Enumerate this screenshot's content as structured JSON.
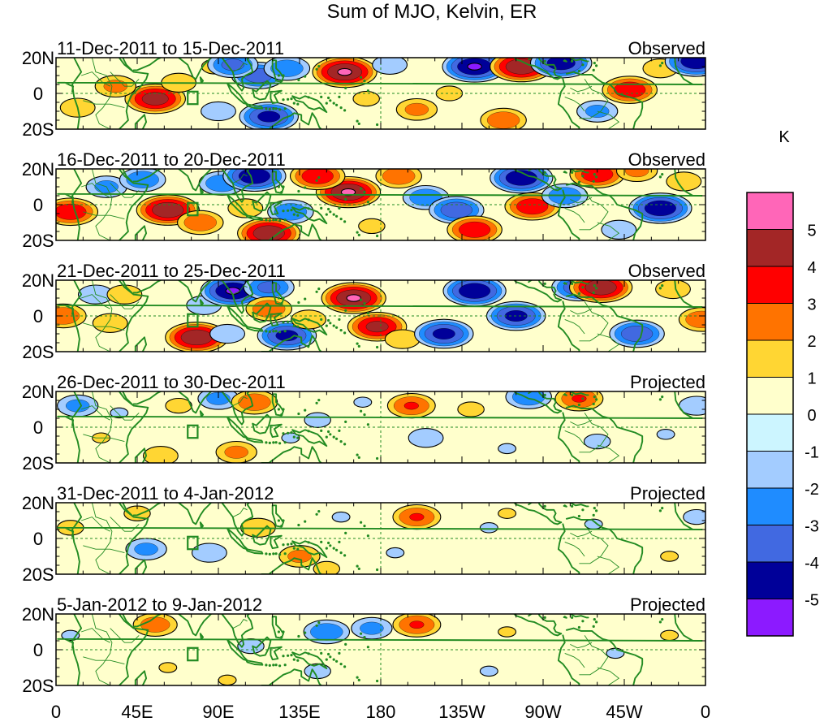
{
  "chart_data": {
    "type": "heatmap",
    "title": "Sum of MJO, Kelvin, ER",
    "units": "K",
    "colorbar": {
      "tick_labels": [
        "5",
        "4",
        "3",
        "2",
        "1",
        "0",
        "-1",
        "-2",
        "-3",
        "-4",
        "-5"
      ],
      "colors": [
        "#ff66b8",
        "#a32626",
        "#ff0000",
        "#ff7300",
        "#ffd633",
        "#ffffcc",
        "#ccf5ff",
        "#a3ccff",
        "#1f8cff",
        "#4169e1",
        "#000099",
        "#8c1aff"
      ]
    },
    "x_axis": {
      "tick_labels": [
        "0",
        "45E",
        "90E",
        "135E",
        "180",
        "135W",
        "90W",
        "45W",
        "0"
      ],
      "range_deg_east": [
        0,
        360
      ]
    },
    "y_axis": {
      "tick_labels": [
        "20N",
        "0",
        "20S"
      ],
      "range_deg": [
        -20,
        20
      ]
    },
    "panels": [
      {
        "period": "11-Dec-2011 to 15-Dec-2011",
        "status": "Observed",
        "blobs": [
          {
            "lon": 55,
            "lat": -3,
            "value": 4.7
          },
          {
            "lon": 33,
            "lat": 4,
            "value": 2.5
          },
          {
            "lon": 68,
            "lat": 6,
            "value": 2.0
          },
          {
            "lon": 88,
            "lat": 15,
            "value": 1.5
          },
          {
            "lon": 12,
            "lat": -8,
            "value": 2.0
          },
          {
            "lon": 112,
            "lat": 10,
            "value": -3.8
          },
          {
            "lon": 98,
            "lat": 16,
            "value": -3.5
          },
          {
            "lon": 128,
            "lat": 14,
            "value": -3.0
          },
          {
            "lon": 118,
            "lat": -13,
            "value": -4.5
          },
          {
            "lon": 90,
            "lat": -10,
            "value": -2.0
          },
          {
            "lon": 160,
            "lat": 12,
            "value": 5.2
          },
          {
            "lon": 172,
            "lat": -3,
            "value": 1.5
          },
          {
            "lon": 185,
            "lat": 16,
            "value": -2.0
          },
          {
            "lon": 200,
            "lat": -9,
            "value": 2.5
          },
          {
            "lon": 232,
            "lat": 15,
            "value": -5.2
          },
          {
            "lon": 248,
            "lat": -15,
            "value": 3.0
          },
          {
            "lon": 258,
            "lat": 15,
            "value": 5.0
          },
          {
            "lon": 280,
            "lat": 17,
            "value": -4.8
          },
          {
            "lon": 318,
            "lat": 2,
            "value": 4.0
          },
          {
            "lon": 335,
            "lat": 14,
            "value": 2.0
          },
          {
            "lon": 355,
            "lat": 18,
            "value": -5.0
          },
          {
            "lon": 300,
            "lat": -10,
            "value": -2.5
          },
          {
            "lon": 218,
            "lat": 0,
            "value": 1.5
          }
        ]
      },
      {
        "period": "16-Dec-2011 to 20-Dec-2011",
        "status": "Observed",
        "blobs": [
          {
            "lon": 8,
            "lat": -4,
            "value": 4.0
          },
          {
            "lon": 28,
            "lat": 10,
            "value": -2.5
          },
          {
            "lon": 48,
            "lat": 14,
            "value": -3.0
          },
          {
            "lon": 62,
            "lat": -3,
            "value": 5.0
          },
          {
            "lon": 80,
            "lat": -10,
            "value": 3.0
          },
          {
            "lon": 92,
            "lat": 12,
            "value": -3.0
          },
          {
            "lon": 110,
            "lat": 16,
            "value": -5.0
          },
          {
            "lon": 105,
            "lat": -2,
            "value": 2.0
          },
          {
            "lon": 130,
            "lat": -4,
            "value": -3.0
          },
          {
            "lon": 118,
            "lat": -16,
            "value": 5.0
          },
          {
            "lon": 162,
            "lat": 7,
            "value": 5.2
          },
          {
            "lon": 145,
            "lat": 16,
            "value": 4.0
          },
          {
            "lon": 190,
            "lat": 16,
            "value": 3.0
          },
          {
            "lon": 175,
            "lat": -12,
            "value": 1.5
          },
          {
            "lon": 205,
            "lat": 4,
            "value": -3.0
          },
          {
            "lon": 222,
            "lat": -3,
            "value": -4.0
          },
          {
            "lon": 232,
            "lat": -14,
            "value": 4.0
          },
          {
            "lon": 258,
            "lat": 15,
            "value": -5.0
          },
          {
            "lon": 264,
            "lat": -1,
            "value": 4.0
          },
          {
            "lon": 282,
            "lat": 5,
            "value": -3.0
          },
          {
            "lon": 300,
            "lat": 17,
            "value": 4.0
          },
          {
            "lon": 322,
            "lat": 19,
            "value": 2.5
          },
          {
            "lon": 335,
            "lat": -2,
            "value": -5.0
          },
          {
            "lon": 348,
            "lat": 13,
            "value": 2.0
          },
          {
            "lon": 312,
            "lat": -14,
            "value": -2.0
          }
        ]
      },
      {
        "period": "21-Dec-2011 to 25-Dec-2011",
        "status": "Observed",
        "blobs": [
          {
            "lon": 4,
            "lat": 0,
            "value": 3.0
          },
          {
            "lon": 22,
            "lat": 12,
            "value": -2.0
          },
          {
            "lon": 30,
            "lat": -4,
            "value": 2.0
          },
          {
            "lon": 38,
            "lat": 12,
            "value": 2.0
          },
          {
            "lon": 78,
            "lat": -12,
            "value": 5.0
          },
          {
            "lon": 82,
            "lat": 6,
            "value": -2.0
          },
          {
            "lon": 98,
            "lat": 14,
            "value": -5.2
          },
          {
            "lon": 118,
            "lat": 16,
            "value": -3.5
          },
          {
            "lon": 95,
            "lat": -10,
            "value": -2.0
          },
          {
            "lon": 118,
            "lat": 4,
            "value": 3.0
          },
          {
            "lon": 128,
            "lat": -11,
            "value": -4.5
          },
          {
            "lon": 140,
            "lat": -2,
            "value": 2.0
          },
          {
            "lon": 165,
            "lat": 10,
            "value": 5.2
          },
          {
            "lon": 178,
            "lat": -6,
            "value": 4.5
          },
          {
            "lon": 192,
            "lat": -13,
            "value": 2.0
          },
          {
            "lon": 215,
            "lat": -10,
            "value": -4.5
          },
          {
            "lon": 232,
            "lat": 14,
            "value": -5.0
          },
          {
            "lon": 255,
            "lat": 0,
            "value": -4.5
          },
          {
            "lon": 290,
            "lat": 16,
            "value": -4.0
          },
          {
            "lon": 302,
            "lat": 16,
            "value": 5.0
          },
          {
            "lon": 342,
            "lat": 15,
            "value": 2.0
          },
          {
            "lon": 322,
            "lat": -10,
            "value": -4.0
          },
          {
            "lon": 358,
            "lat": -2,
            "value": 3.0
          }
        ]
      },
      {
        "period": "26-Dec-2011 to 30-Dec-2011",
        "status": "Projected",
        "blobs": [
          {
            "lon": 12,
            "lat": 12,
            "value": -2.5
          },
          {
            "lon": 35,
            "lat": 8,
            "value": -1.2
          },
          {
            "lon": 25,
            "lat": -6,
            "value": 1.2
          },
          {
            "lon": 68,
            "lat": 12,
            "value": 1.5
          },
          {
            "lon": 58,
            "lat": -16,
            "value": 2.0
          },
          {
            "lon": 90,
            "lat": 16,
            "value": -2.5
          },
          {
            "lon": 110,
            "lat": 14,
            "value": 3.0
          },
          {
            "lon": 100,
            "lat": -14,
            "value": 2.5
          },
          {
            "lon": 130,
            "lat": -6,
            "value": -1.2
          },
          {
            "lon": 145,
            "lat": 4,
            "value": -1.5
          },
          {
            "lon": 170,
            "lat": 14,
            "value": -1.2
          },
          {
            "lon": 197,
            "lat": 12,
            "value": 3.2
          },
          {
            "lon": 205,
            "lat": -6,
            "value": -2.0
          },
          {
            "lon": 230,
            "lat": 10,
            "value": 1.5
          },
          {
            "lon": 262,
            "lat": 17,
            "value": -3.0
          },
          {
            "lon": 290,
            "lat": 16,
            "value": 3.2
          },
          {
            "lon": 300,
            "lat": -8,
            "value": -1.5
          },
          {
            "lon": 355,
            "lat": 12,
            "value": -2.0
          },
          {
            "lon": 250,
            "lat": -12,
            "value": -1.2
          },
          {
            "lon": 338,
            "lat": -4,
            "value": -1.2
          }
        ]
      },
      {
        "period": "31-Dec-2011 to 4-Jan-2012",
        "status": "Projected",
        "blobs": [
          {
            "lon": 8,
            "lat": 6,
            "value": 1.5
          },
          {
            "lon": 45,
            "lat": 14,
            "value": 1.5
          },
          {
            "lon": 50,
            "lat": -6,
            "value": -2.5
          },
          {
            "lon": 85,
            "lat": -8,
            "value": -2.0
          },
          {
            "lon": 112,
            "lat": 6,
            "value": 2.0
          },
          {
            "lon": 135,
            "lat": -10,
            "value": 2.5
          },
          {
            "lon": 150,
            "lat": -17,
            "value": 1.5
          },
          {
            "lon": 158,
            "lat": 12,
            "value": -1.2
          },
          {
            "lon": 200,
            "lat": 12,
            "value": 3.2
          },
          {
            "lon": 188,
            "lat": -8,
            "value": -1.2
          },
          {
            "lon": 240,
            "lat": 6,
            "value": -1.2
          },
          {
            "lon": 250,
            "lat": 14,
            "value": 1.2
          },
          {
            "lon": 298,
            "lat": 8,
            "value": -1.2
          },
          {
            "lon": 355,
            "lat": 12,
            "value": -1.5
          },
          {
            "lon": 340,
            "lat": -10,
            "value": 1.2
          }
        ]
      },
      {
        "period": "5-Jan-2012 to 9-Jan-2012",
        "status": "Projected",
        "blobs": [
          {
            "lon": 8,
            "lat": 8,
            "value": -1.2
          },
          {
            "lon": 55,
            "lat": 14,
            "value": 2.8
          },
          {
            "lon": 62,
            "lat": -10,
            "value": 1.2
          },
          {
            "lon": 108,
            "lat": 2,
            "value": -1.5
          },
          {
            "lon": 150,
            "lat": 10,
            "value": -3.0
          },
          {
            "lon": 175,
            "lat": 12,
            "value": -2.5
          },
          {
            "lon": 145,
            "lat": -12,
            "value": -1.5
          },
          {
            "lon": 200,
            "lat": 14,
            "value": 3.2
          },
          {
            "lon": 250,
            "lat": 10,
            "value": 1.2
          },
          {
            "lon": 310,
            "lat": -2,
            "value": -1.2
          },
          {
            "lon": 340,
            "lat": 8,
            "value": 1.2
          },
          {
            "lon": 95,
            "lat": -17,
            "value": 1.2
          },
          {
            "lon": 240,
            "lat": -12,
            "value": -1.2
          }
        ]
      }
    ]
  }
}
